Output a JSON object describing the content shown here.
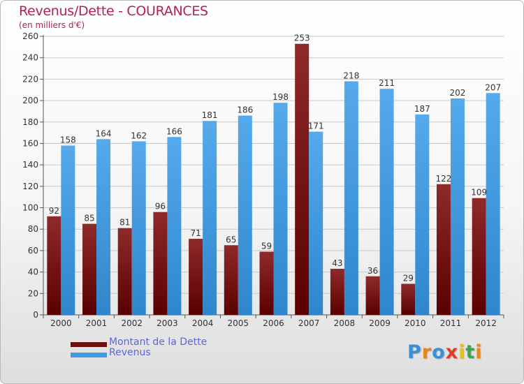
{
  "title": "Revenus/Dette - COURANCES",
  "subtitle": "(en milliers d'€)",
  "chart_data": {
    "type": "bar",
    "title": "Revenus/Dette - COURANCES",
    "subtitle": "(en milliers d'€)",
    "categories": [
      "2000",
      "2001",
      "2002",
      "2003",
      "2004",
      "2005",
      "2006",
      "2007",
      "2008",
      "2009",
      "2010",
      "2011",
      "2012"
    ],
    "series": [
      {
        "name": "Montant de la Dette",
        "color": "#7a1a1a",
        "values": [
          92,
          85,
          81,
          96,
          71,
          65,
          59,
          253,
          43,
          36,
          29,
          122,
          109
        ]
      },
      {
        "name": "Revenus",
        "color": "#3e9be3",
        "values": [
          158,
          164,
          162,
          166,
          181,
          186,
          198,
          171,
          218,
          211,
          187,
          202,
          207
        ]
      }
    ],
    "ylim": [
      0,
      260
    ],
    "yticks": [
      0,
      20,
      40,
      60,
      80,
      100,
      120,
      140,
      160,
      180,
      200,
      220,
      240,
      260
    ],
    "grid": true,
    "legend": "bottom-left"
  },
  "legend": {
    "items": [
      {
        "label": "Montant de la Dette",
        "color": "#6b0f0f"
      },
      {
        "label": "Revenus",
        "color": "#3e9be3"
      }
    ]
  },
  "logo": {
    "letters": [
      "P",
      "r",
      "o",
      "x",
      "i",
      "t",
      "i"
    ],
    "colors": [
      "#3a8fd6",
      "#e8861a",
      "#3a8fd6",
      "#e23a2a",
      "#e8c21a",
      "#3aa84a",
      "#e8861a"
    ]
  }
}
